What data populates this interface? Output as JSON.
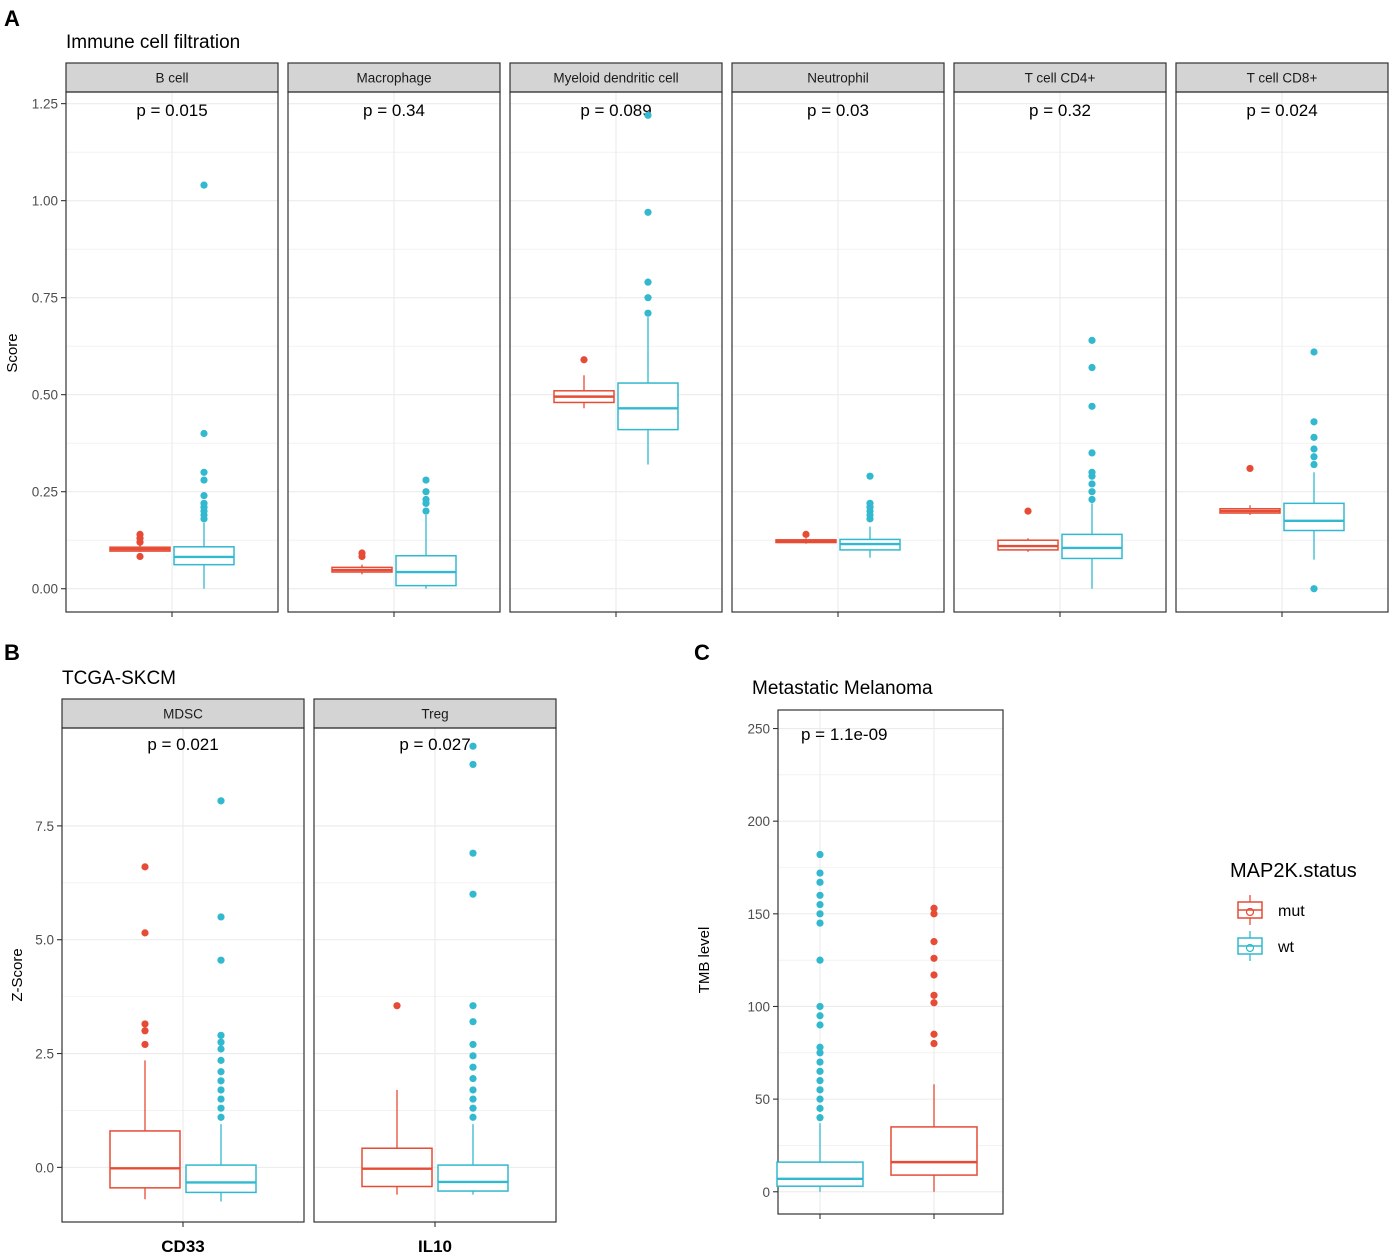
{
  "panel_labels": [
    "A",
    "B",
    "C"
  ],
  "legend": {
    "title": "MAP2K.status",
    "items": [
      {
        "label": "mut",
        "color": "#E64B35"
      },
      {
        "label": "wt",
        "color": "#32B8CF"
      }
    ]
  },
  "colors": {
    "mut": "#E64B35",
    "wt": "#32B8CF",
    "strip_fill": "#D4D4D4",
    "grid": "#EBEBEB",
    "frame": "#333333"
  },
  "chart_data": [
    {
      "type": "boxplot",
      "id": "A",
      "title": "Immune cell filtration",
      "ylabel": "Score",
      "xlabel": "",
      "ylim": [
        -0.06,
        1.28
      ],
      "yticks": [
        0.0,
        0.25,
        0.5,
        0.75,
        1.0,
        1.25
      ],
      "ytick_labels": [
        "0.00",
        "0.25",
        "0.50",
        "0.75",
        "1.00",
        "1.25"
      ],
      "facets": [
        {
          "label": "B cell",
          "pvalue": "p = 0.015",
          "boxes": [
            {
              "group": "mut",
              "q1": 0.097,
              "median": 0.102,
              "q3": 0.107,
              "whisker_low": 0.095,
              "whisker_high": 0.112,
              "outliers": [
                0.083,
                0.12,
                0.13,
                0.14
              ]
            },
            {
              "group": "wt",
              "q1": 0.062,
              "median": 0.082,
              "q3": 0.108,
              "whisker_low": 0.0,
              "whisker_high": 0.17,
              "outliers": [
                0.18,
                0.19,
                0.2,
                0.21,
                0.22,
                0.24,
                0.28,
                0.3,
                0.4,
                1.04
              ]
            }
          ]
        },
        {
          "label": "Macrophage",
          "pvalue": "p = 0.34",
          "boxes": [
            {
              "group": "mut",
              "q1": 0.043,
              "median": 0.048,
              "q3": 0.055,
              "whisker_low": 0.037,
              "whisker_high": 0.062,
              "outliers": [
                0.083,
                0.092
              ]
            },
            {
              "group": "wt",
              "q1": 0.008,
              "median": 0.043,
              "q3": 0.085,
              "whisker_low": 0.0,
              "whisker_high": 0.19,
              "outliers": [
                0.2,
                0.22,
                0.23,
                0.25,
                0.28
              ]
            }
          ]
        },
        {
          "label": "Myeloid dendritic cell",
          "pvalue": "p = 0.089",
          "boxes": [
            {
              "group": "mut",
              "q1": 0.48,
              "median": 0.495,
              "q3": 0.51,
              "whisker_low": 0.465,
              "whisker_high": 0.55,
              "outliers": [
                0.59
              ]
            },
            {
              "group": "wt",
              "q1": 0.41,
              "median": 0.465,
              "q3": 0.53,
              "whisker_low": 0.32,
              "whisker_high": 0.7,
              "outliers": [
                0.71,
                0.75,
                0.79,
                0.97,
                1.22
              ]
            }
          ]
        },
        {
          "label": "Neutrophil",
          "pvalue": "p = 0.03",
          "boxes": [
            {
              "group": "mut",
              "q1": 0.119,
              "median": 0.122,
              "q3": 0.126,
              "whisker_low": 0.116,
              "whisker_high": 0.13,
              "outliers": [
                0.14
              ]
            },
            {
              "group": "wt",
              "q1": 0.1,
              "median": 0.115,
              "q3": 0.127,
              "whisker_low": 0.08,
              "whisker_high": 0.16,
              "outliers": [
                0.18,
                0.19,
                0.2,
                0.21,
                0.22,
                0.29
              ]
            }
          ]
        },
        {
          "label": "T cell CD4+",
          "pvalue": "p = 0.32",
          "boxes": [
            {
              "group": "mut",
              "q1": 0.1,
              "median": 0.11,
              "q3": 0.125,
              "whisker_low": 0.095,
              "whisker_high": 0.13,
              "outliers": [
                0.2
              ]
            },
            {
              "group": "wt",
              "q1": 0.078,
              "median": 0.105,
              "q3": 0.14,
              "whisker_low": 0.0,
              "whisker_high": 0.22,
              "outliers": [
                0.23,
                0.25,
                0.27,
                0.29,
                0.3,
                0.35,
                0.47,
                0.57,
                0.64
              ]
            }
          ]
        },
        {
          "label": "T cell CD8+",
          "pvalue": "p = 0.024",
          "boxes": [
            {
              "group": "mut",
              "q1": 0.195,
              "median": 0.2,
              "q3": 0.206,
              "whisker_low": 0.19,
              "whisker_high": 0.215,
              "outliers": [
                0.31
              ]
            },
            {
              "group": "wt",
              "q1": 0.15,
              "median": 0.175,
              "q3": 0.22,
              "whisker_low": 0.075,
              "whisker_high": 0.3,
              "outliers": [
                0.0,
                0.32,
                0.34,
                0.36,
                0.39,
                0.43,
                0.61
              ]
            }
          ]
        }
      ]
    },
    {
      "type": "boxplot",
      "id": "B",
      "title": "TCGA-SKCM",
      "ylabel": "Z-Score",
      "xlabel": "",
      "ylim": [
        -1.2,
        9.65
      ],
      "yticks": [
        0.0,
        2.5,
        5.0,
        7.5
      ],
      "ytick_labels": [
        "0.0",
        "2.5",
        "5.0",
        "7.5"
      ],
      "facets": [
        {
          "label": "MDSC",
          "xlabel": "CD33",
          "pvalue": "p = 0.021",
          "boxes": [
            {
              "group": "mut",
              "q1": -0.45,
              "median": -0.02,
              "q3": 0.8,
              "whisker_low": -0.7,
              "whisker_high": 2.35,
              "outliers": [
                2.7,
                3.0,
                3.15,
                5.15,
                6.6
              ]
            },
            {
              "group": "wt",
              "q1": -0.55,
              "median": -0.33,
              "q3": 0.05,
              "whisker_low": -0.75,
              "whisker_high": 0.95,
              "outliers": [
                1.1,
                1.3,
                1.5,
                1.7,
                1.9,
                2.1,
                2.35,
                2.6,
                2.75,
                2.9,
                4.55,
                5.5,
                8.05
              ]
            }
          ]
        },
        {
          "label": "Treg",
          "xlabel": "IL10",
          "pvalue": "p = 0.027",
          "boxes": [
            {
              "group": "mut",
              "q1": -0.42,
              "median": -0.03,
              "q3": 0.42,
              "whisker_low": -0.6,
              "whisker_high": 1.7,
              "outliers": [
                3.55
              ]
            },
            {
              "group": "wt",
              "q1": -0.52,
              "median": -0.32,
              "q3": 0.05,
              "whisker_low": -0.6,
              "whisker_high": 0.95,
              "outliers": [
                1.1,
                1.3,
                1.5,
                1.7,
                1.95,
                2.2,
                2.45,
                2.7,
                3.2,
                3.55,
                6.0,
                6.9,
                8.85,
                9.25
              ]
            }
          ]
        }
      ]
    },
    {
      "type": "boxplot",
      "id": "C",
      "title": "Metastatic Melanoma",
      "ylabel": "TMB level",
      "xlabel": "",
      "pvalue": "p = 1.1e-09",
      "ylim": [
        -12,
        260
      ],
      "yticks": [
        0,
        50,
        100,
        150,
        200,
        250
      ],
      "ytick_labels": [
        "0",
        "50",
        "100",
        "150",
        "200",
        "250"
      ],
      "boxes": [
        {
          "group": "wt",
          "q1": 3,
          "median": 7,
          "q3": 16,
          "whisker_low": 0,
          "whisker_high": 37,
          "outliers": [
            40,
            45,
            50,
            55,
            60,
            65,
            70,
            75,
            78,
            90,
            95,
            100,
            125,
            145,
            150,
            155,
            160,
            167,
            172,
            182
          ]
        },
        {
          "group": "mut",
          "q1": 9,
          "median": 16,
          "q3": 35,
          "whisker_low": 0,
          "whisker_high": 58,
          "outliers": [
            80,
            85,
            102,
            106,
            117,
            126,
            135,
            150,
            153
          ]
        }
      ]
    }
  ]
}
